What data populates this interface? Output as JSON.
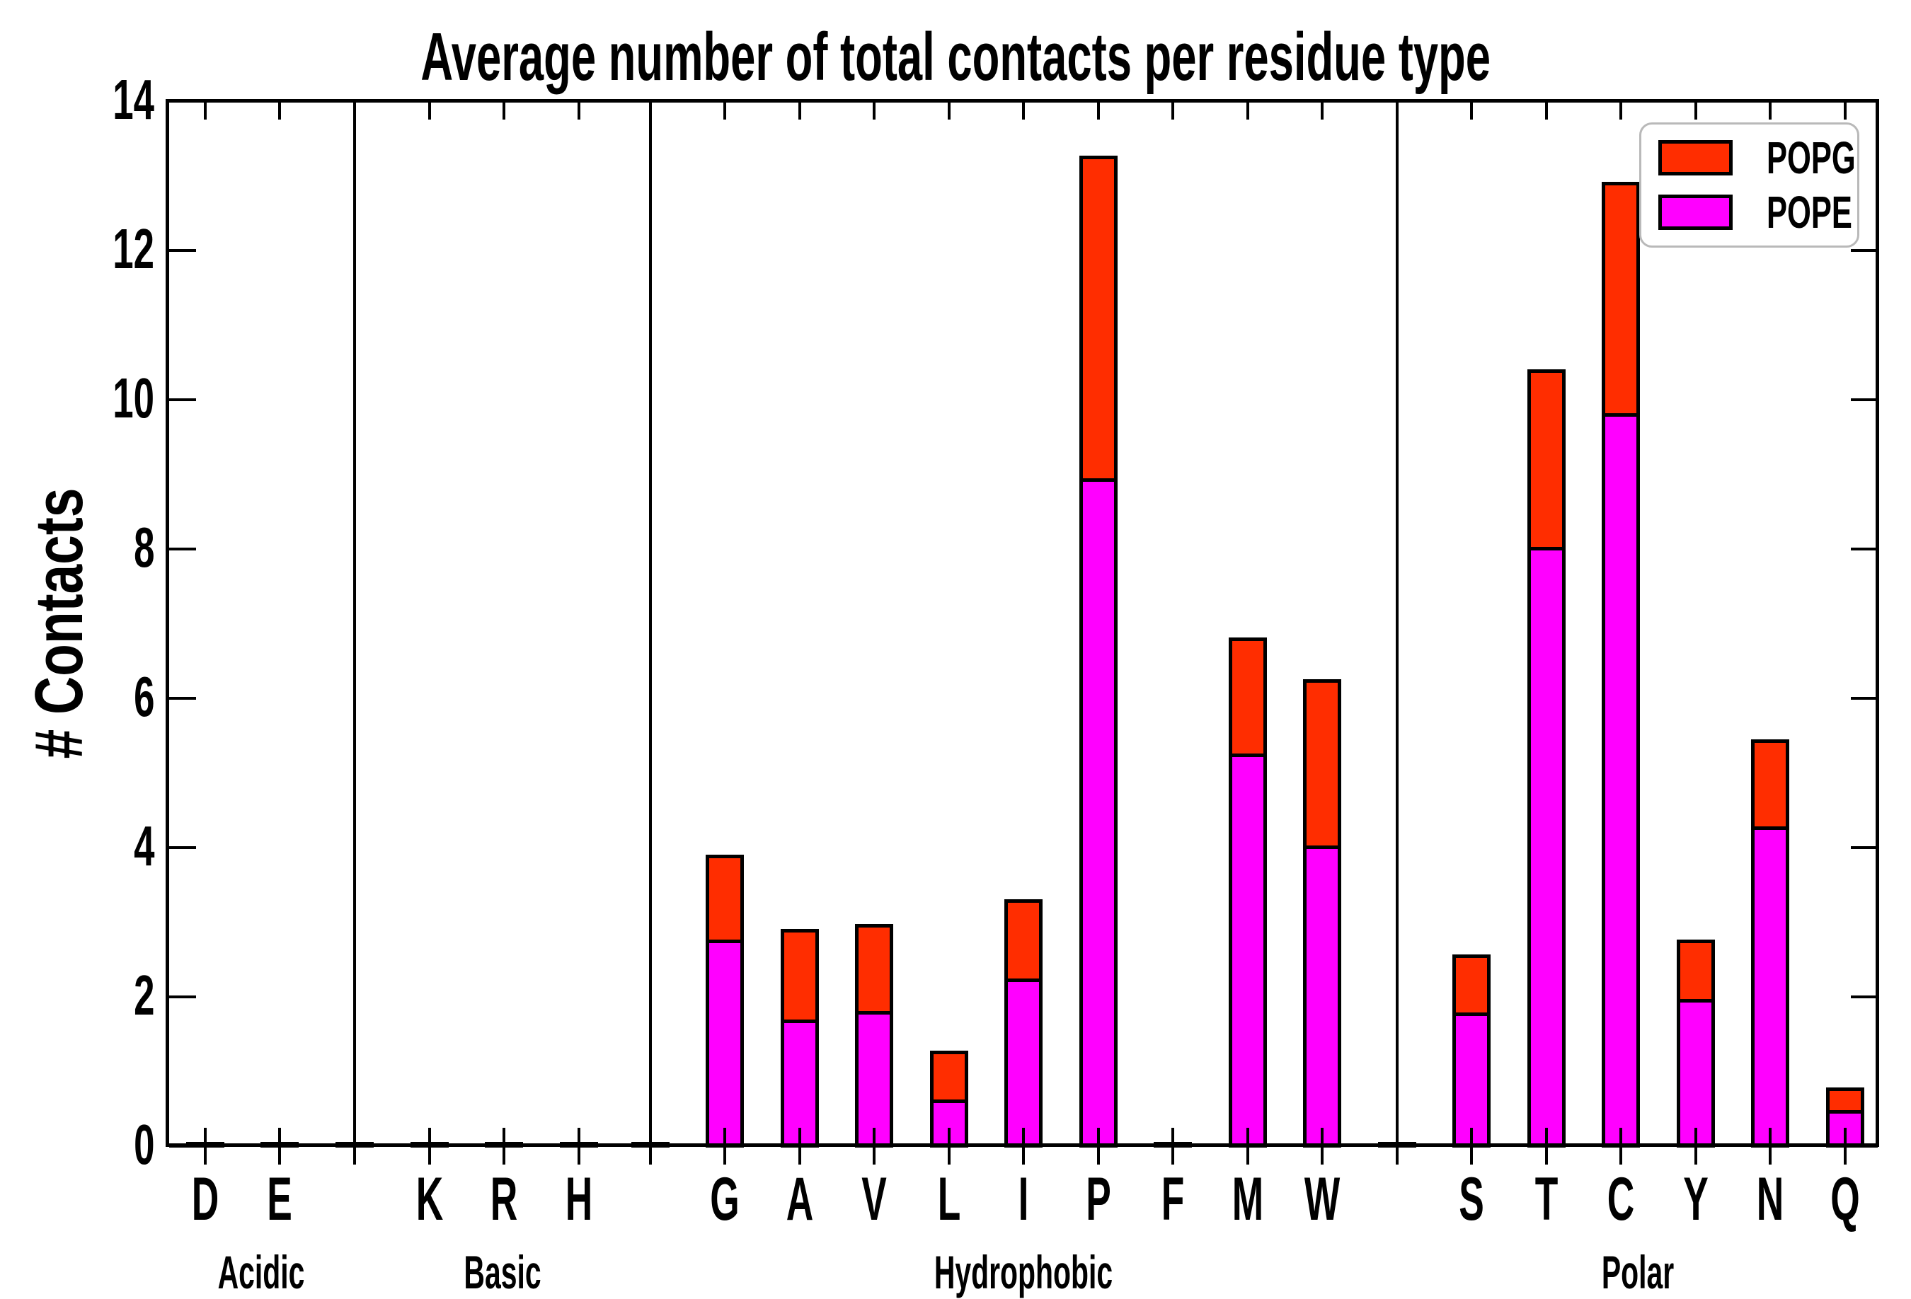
{
  "title": "Average number of total contacts per residue type",
  "ylabel": "# Contacts",
  "legend": [
    {
      "label": "POPG",
      "color": "#ff2d00"
    },
    {
      "label": "POPE",
      "color": "#ff00ff"
    }
  ],
  "chart_data": {
    "type": "bar",
    "stacked": true,
    "title": "Average number of total contacts per residue type",
    "xlabel": "",
    "ylabel": "# Contacts",
    "ylim": [
      0,
      14
    ],
    "yticks": [
      0,
      2,
      4,
      6,
      8,
      10,
      12,
      14
    ],
    "legend_position": "upper right",
    "grid": false,
    "series_order": [
      "POPE",
      "POPG"
    ],
    "colors": {
      "POPE": "#ff00ff",
      "POPG": "#ff2d00"
    },
    "groups": [
      {
        "name": "Acidic",
        "categories": [
          "D",
          "E"
        ],
        "series": {
          "POPE": [
            0.03,
            0.03
          ],
          "POPG": [
            0.02,
            0.02
          ]
        }
      },
      {
        "name": "Basic",
        "categories": [
          "K",
          "R",
          "H"
        ],
        "series": {
          "POPE": [
            0.03,
            0.03,
            0.03
          ],
          "POPG": [
            0.02,
            0.02,
            0.02
          ]
        }
      },
      {
        "name": "Hydrophobic",
        "categories": [
          "G",
          "A",
          "V",
          "L",
          "I",
          "P",
          "F",
          "M",
          "W"
        ],
        "series": {
          "POPE": [
            2.72,
            1.65,
            1.76,
            0.58,
            2.2,
            8.9,
            0.03,
            5.21,
            3.98
          ],
          "POPG": [
            1.12,
            1.19,
            1.15,
            0.63,
            1.04,
            4.3,
            0.02,
            1.54,
            2.21
          ]
        }
      },
      {
        "name": "Polar",
        "categories": [
          "S",
          "T",
          "C",
          "Y",
          "N",
          "Q"
        ],
        "series": {
          "POPE": [
            1.74,
            7.98,
            9.77,
            1.92,
            4.24,
            0.44
          ],
          "POPG": [
            0.76,
            2.36,
            3.08,
            0.78,
            1.14,
            0.28
          ]
        }
      }
    ],
    "spacer_bar": {
      "POPE": 0.03,
      "POPG": 0.02
    }
  }
}
